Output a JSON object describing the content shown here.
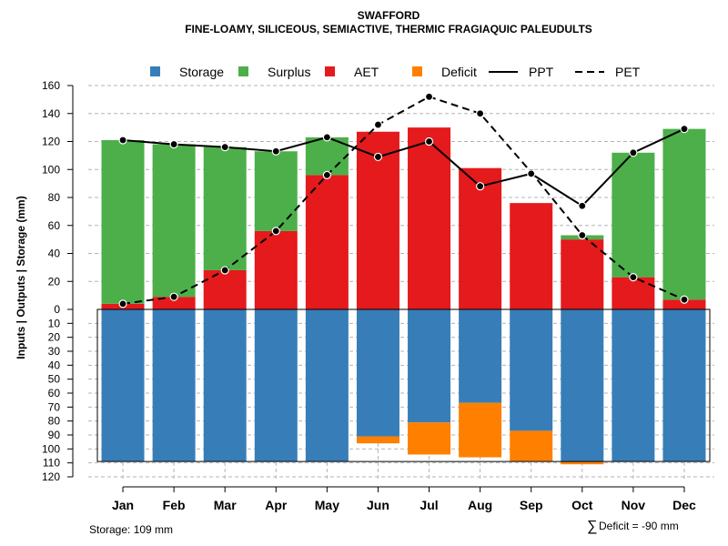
{
  "chart_data": {
    "type": "bar",
    "title": "SWAFFORD",
    "subtitle": "FINE-LOAMY, SILICEOUS, SEMIACTIVE, THERMIC FRAGIAQUIC PALEUDULTS",
    "ylabel": "Inputs | Outputs | Storage    (mm)",
    "ylim": [
      -120,
      160
    ],
    "grid": true,
    "legend_position": "top",
    "legend": [
      {
        "key": "storage",
        "label": "Storage",
        "color": "#377EB8",
        "kind": "box"
      },
      {
        "key": "surplus",
        "label": "Surplus",
        "color": "#4DAF4A",
        "kind": "box"
      },
      {
        "key": "aet",
        "label": "AET",
        "color": "#E41A1C",
        "kind": "box"
      },
      {
        "key": "deficit",
        "label": "Deficit",
        "color": "#FF7F00",
        "kind": "box"
      },
      {
        "key": "ppt",
        "label": "PPT",
        "color": "#000000",
        "kind": "solid"
      },
      {
        "key": "pet",
        "label": "PET",
        "color": "#000000",
        "kind": "dashed"
      }
    ],
    "categories": [
      "Jan",
      "Feb",
      "Mar",
      "Apr",
      "May",
      "Jun",
      "Jul",
      "Aug",
      "Sep",
      "Oct",
      "Nov",
      "Dec"
    ],
    "upper_ticks": [
      "160",
      "140",
      "120",
      "100",
      "80",
      "60",
      "40",
      "20",
      "0"
    ],
    "lower_ticks": [
      "10",
      "20",
      "30",
      "40",
      "50",
      "60",
      "70",
      "80",
      "90",
      "100",
      "110",
      "120"
    ],
    "series": [
      {
        "name": "AET",
        "values": [
          4,
          9,
          28,
          56,
          96,
          127,
          130,
          101,
          76,
          50,
          23,
          7
        ]
      },
      {
        "name": "Surplus",
        "values": [
          117,
          109,
          88,
          57,
          27,
          0,
          0,
          0,
          0,
          3,
          89,
          122
        ]
      },
      {
        "name": "Storage",
        "values": [
          109,
          109,
          109,
          109,
          109,
          91,
          81,
          67,
          87,
          109,
          109,
          109
        ]
      },
      {
        "name": "Deficit",
        "values": [
          0,
          0,
          0,
          0,
          0,
          5,
          23,
          39,
          22,
          2,
          0,
          0
        ]
      },
      {
        "name": "PPT",
        "values": [
          121,
          118,
          116,
          113,
          123,
          109,
          120,
          88,
          97,
          74,
          112,
          129
        ]
      },
      {
        "name": "PET",
        "values": [
          4,
          9,
          28,
          56,
          96,
          132,
          152,
          140,
          98,
          53,
          23,
          7
        ]
      }
    ],
    "annotations": {
      "storage": "Storage: 109 mm",
      "deficit_symbol": "∑",
      "deficit": "Deficit = -90 mm"
    }
  }
}
